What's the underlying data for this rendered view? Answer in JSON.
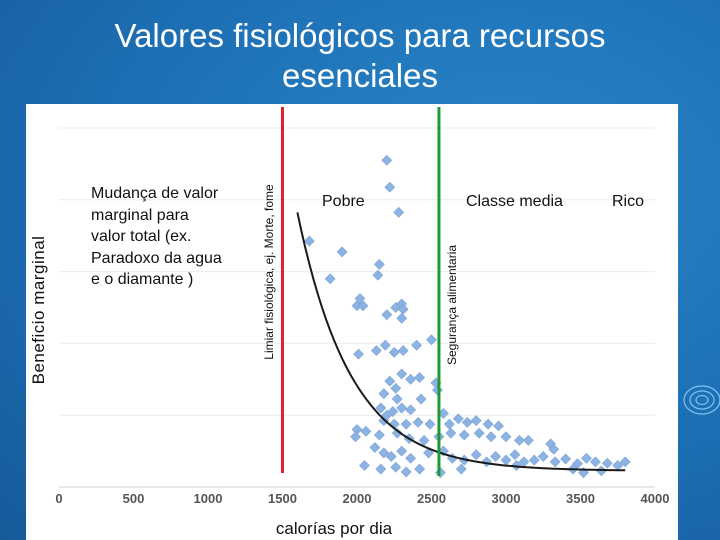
{
  "slide": {
    "title": "Valores fisiológicos para recursos esenciales"
  },
  "annotations": {
    "paradox_text_lines": [
      "Mudança de valor",
      "marginal para",
      "valor total (ex.",
      "Paradoxo da agua",
      "e o diamante )"
    ],
    "red_line_label": "Limiar fisiológica, ej. Morte, fome",
    "green_line_label": "Segurança alimentaria",
    "region_poor": "Pobre",
    "region_middle": "Classe media",
    "region_rich": "Rico"
  },
  "colors": {
    "background": "#1d6fb4",
    "points": "#8db3e2",
    "curve": "#1a1a1a",
    "red_line": "#e0242c",
    "green_line": "#1f9a33"
  },
  "chart_data": {
    "type": "scatter",
    "title": "",
    "xlabel": "calorías por dia",
    "ylabel": "Beneficio marginal",
    "xlim": [
      0,
      4000
    ],
    "ylim": [
      0,
      1
    ],
    "x_ticks": [
      "0",
      "500",
      "1000",
      "1500",
      "2000",
      "2500",
      "3000",
      "3500",
      "4000"
    ],
    "x_tick_values": [
      0,
      500,
      1000,
      1500,
      2000,
      2500,
      3000,
      3500,
      4000
    ],
    "vertical_lines": [
      {
        "name": "Limiar fisiológica, ej. Morte, fome",
        "x": 1500,
        "color": "#e0242c"
      },
      {
        "name": "Segurança alimentaria",
        "x": 2550,
        "color": "#1f9a33"
      }
    ],
    "trend": {
      "type": "exponential-decay",
      "x_start": 1600,
      "x_end": 3800
    },
    "points": [
      [
        2200,
        0.91
      ],
      [
        2220,
        0.835
      ],
      [
        2280,
        0.765
      ],
      [
        1680,
        0.685
      ],
      [
        1900,
        0.655
      ],
      [
        2150,
        0.62
      ],
      [
        2140,
        0.59
      ],
      [
        2020,
        0.525
      ],
      [
        2000,
        0.505
      ],
      [
        2040,
        0.505
      ],
      [
        2200,
        0.48
      ],
      [
        2260,
        0.5
      ],
      [
        2300,
        0.51
      ],
      [
        2310,
        0.495
      ],
      [
        2300,
        0.47
      ],
      [
        1820,
        0.58
      ],
      [
        2130,
        0.38
      ],
      [
        2190,
        0.395
      ],
      [
        2250,
        0.375
      ],
      [
        2310,
        0.38
      ],
      [
        2010,
        0.37
      ],
      [
        2400,
        0.395
      ],
      [
        2500,
        0.41
      ],
      [
        2420,
        0.305
      ],
      [
        2530,
        0.29
      ],
      [
        2540,
        0.27
      ],
      [
        2300,
        0.315
      ],
      [
        2360,
        0.3
      ],
      [
        2180,
        0.26
      ],
      [
        2220,
        0.295
      ],
      [
        2260,
        0.275
      ],
      [
        2270,
        0.245
      ],
      [
        2430,
        0.245
      ],
      [
        2160,
        0.22
      ],
      [
        2240,
        0.21
      ],
      [
        2200,
        0.2
      ],
      [
        2300,
        0.22
      ],
      [
        2360,
        0.215
      ],
      [
        2180,
        0.185
      ],
      [
        2250,
        0.175
      ],
      [
        2330,
        0.175
      ],
      [
        2410,
        0.18
      ],
      [
        2490,
        0.175
      ],
      [
        2580,
        0.205
      ],
      [
        2620,
        0.175
      ],
      [
        2680,
        0.19
      ],
      [
        2740,
        0.18
      ],
      [
        2800,
        0.185
      ],
      [
        2880,
        0.175
      ],
      [
        2950,
        0.17
      ],
      [
        2000,
        0.16
      ],
      [
        2060,
        0.155
      ],
      [
        2150,
        0.145
      ],
      [
        2270,
        0.15
      ],
      [
        2350,
        0.135
      ],
      [
        2450,
        0.13
      ],
      [
        2550,
        0.14
      ],
      [
        2630,
        0.15
      ],
      [
        2720,
        0.145
      ],
      [
        2820,
        0.15
      ],
      [
        2900,
        0.14
      ],
      [
        3000,
        0.14
      ],
      [
        3090,
        0.13
      ],
      [
        3150,
        0.13
      ],
      [
        3300,
        0.12
      ],
      [
        2120,
        0.11
      ],
      [
        2180,
        0.095
      ],
      [
        2230,
        0.085
      ],
      [
        2300,
        0.1
      ],
      [
        2360,
        0.08
      ],
      [
        2480,
        0.095
      ],
      [
        2580,
        0.1
      ],
      [
        2640,
        0.08
      ],
      [
        2720,
        0.075
      ],
      [
        2800,
        0.09
      ],
      [
        2870,
        0.07
      ],
      [
        2930,
        0.085
      ],
      [
        3000,
        0.075
      ],
      [
        3060,
        0.09
      ],
      [
        3120,
        0.07
      ],
      [
        3190,
        0.075
      ],
      [
        3250,
        0.085
      ],
      [
        3330,
        0.07
      ],
      [
        3400,
        0.078
      ],
      [
        3480,
        0.065
      ],
      [
        3540,
        0.08
      ],
      [
        3600,
        0.07
      ],
      [
        3680,
        0.066
      ],
      [
        3750,
        0.06
      ],
      [
        3320,
        0.105
      ],
      [
        2050,
        0.06
      ],
      [
        2160,
        0.05
      ],
      [
        2260,
        0.055
      ],
      [
        2330,
        0.042
      ],
      [
        2420,
        0.05
      ],
      [
        2560,
        0.04
      ],
      [
        2700,
        0.05
      ],
      [
        3450,
        0.05
      ],
      [
        3520,
        0.04
      ],
      [
        3640,
        0.045
      ],
      [
        1990,
        0.14
      ],
      [
        3070,
        0.06
      ],
      [
        3800,
        0.07
      ]
    ]
  }
}
